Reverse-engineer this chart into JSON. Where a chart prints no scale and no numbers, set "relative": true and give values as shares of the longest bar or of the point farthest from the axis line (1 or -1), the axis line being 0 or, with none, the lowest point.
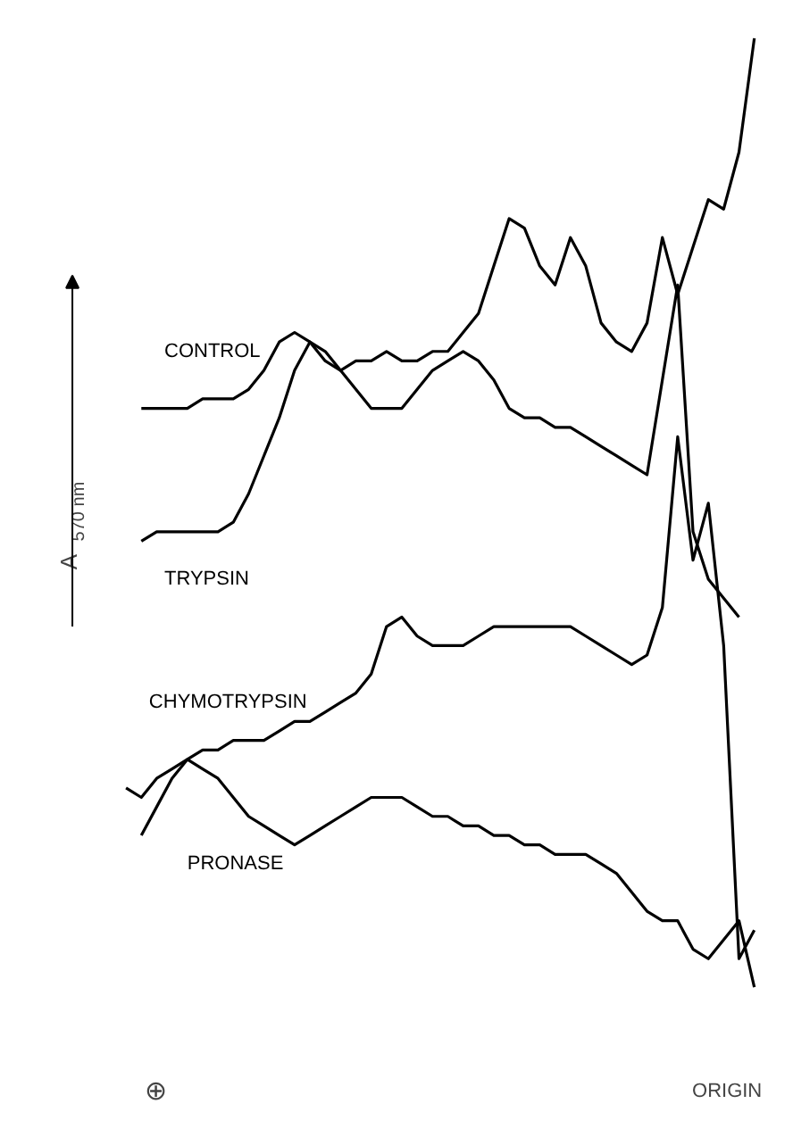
{
  "chart_data": {
    "type": "line",
    "relative": true,
    "ylabel": "A$_{570 nm}$",
    "legend": false,
    "grid": false,
    "categories": [
      null,
      null,
      null,
      null,
      null,
      null,
      null,
      null,
      null,
      null,
      null,
      null,
      null,
      null,
      null,
      null,
      null,
      null,
      null,
      null,
      null,
      null,
      null,
      null,
      null,
      null,
      null,
      null,
      null,
      null,
      null,
      null,
      null,
      null,
      null,
      null,
      null,
      null,
      null,
      null,
      null,
      null
    ],
    "series": [
      {
        "name": "CONTROL",
        "color": "#000000",
        "values": [
          null,
          0.61,
          0.61,
          0.61,
          0.61,
          0.62,
          0.62,
          0.62,
          0.63,
          0.65,
          0.68,
          0.69,
          0.68,
          0.66,
          0.65,
          0.66,
          0.66,
          0.67,
          0.66,
          0.66,
          0.67,
          0.67,
          0.69,
          0.71,
          0.76,
          0.81,
          0.8,
          0.76,
          0.74,
          0.79,
          0.76,
          0.7,
          0.68,
          0.67,
          0.7,
          0.79,
          0.73,
          0.78,
          0.83,
          0.82,
          0.88,
          1
        ]
      },
      {
        "name": "TRYPSIN",
        "color": "#000000",
        "values": [
          null,
          0.47,
          0.48,
          0.48,
          0.48,
          0.48,
          0.48,
          0.49,
          0.52,
          0.56,
          0.6,
          0.65,
          0.68,
          0.67,
          0.65,
          0.63,
          0.61,
          0.61,
          0.61,
          0.63,
          0.65,
          0.66,
          0.67,
          0.66,
          0.64,
          0.61,
          0.6,
          0.6,
          0.59,
          0.59,
          0.58,
          0.57,
          0.56,
          0.55,
          0.54,
          0.64,
          0.74,
          0.48,
          0.43,
          0.41,
          0.39,
          null
        ]
      },
      {
        "name": "CHYMOTRYPSIN",
        "color": "#000000",
        "values": [
          0.21,
          0.2,
          0.22,
          0.23,
          0.24,
          0.25,
          0.25,
          0.26,
          0.26,
          0.26,
          0.27,
          0.28,
          0.28,
          0.29,
          0.3,
          0.31,
          0.33,
          0.38,
          0.39,
          0.37,
          0.36,
          0.36,
          0.36,
          0.37,
          0.38,
          0.38,
          0.38,
          0.38,
          0.38,
          0.38,
          0.37,
          0.36,
          0.35,
          0.34,
          0.35,
          0.4,
          0.58,
          0.45,
          0.51,
          0.36,
          0.03,
          0.06
        ]
      },
      {
        "name": "PRONASE",
        "color": "#000000",
        "values": [
          null,
          0.16,
          0.19,
          0.22,
          0.24,
          0.23,
          0.22,
          0.2,
          0.18,
          0.17,
          0.16,
          0.15,
          0.16,
          0.17,
          0.18,
          0.19,
          0.2,
          0.2,
          0.2,
          0.19,
          0.18,
          0.18,
          0.17,
          0.17,
          0.16,
          0.16,
          0.15,
          0.15,
          0.14,
          0.14,
          0.14,
          0.13,
          0.12,
          0.1,
          0.08,
          0.07,
          0.07,
          0.04,
          0.03,
          0.05,
          0.07,
          0
        ]
      }
    ],
    "annotations": [
      "⊕",
      "ORIGIN"
    ]
  }
}
